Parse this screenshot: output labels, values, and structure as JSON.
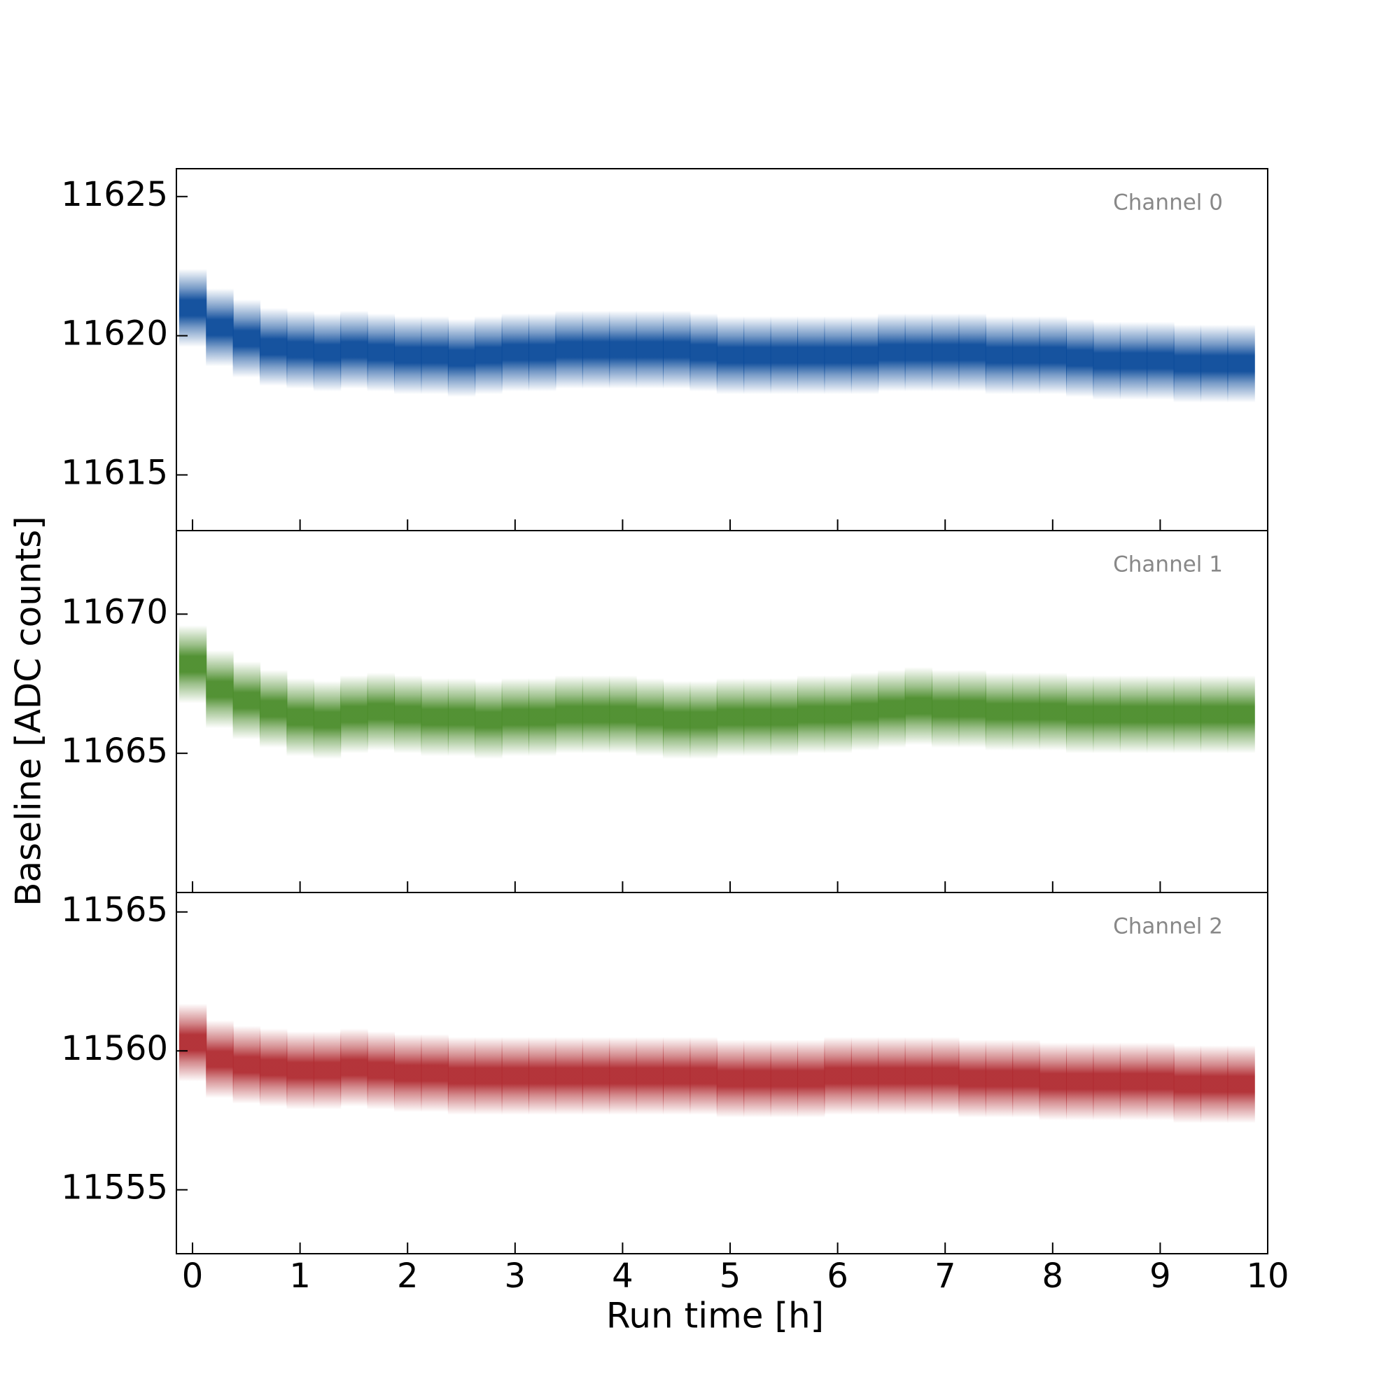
{
  "chart_data": [
    {
      "type": "scatter",
      "annotation": "Channel 0",
      "color": "#0a4a9a",
      "xlim": [
        -0.15,
        10
      ],
      "xticks": [
        0,
        1,
        2,
        3,
        4,
        5,
        6,
        7,
        8,
        9,
        10
      ],
      "ylim": [
        11613,
        11626
      ],
      "yticks": [
        11615,
        11620,
        11625
      ],
      "x": [
        0,
        0.25,
        0.5,
        0.75,
        1,
        1.25,
        1.5,
        1.75,
        2,
        2.25,
        2.5,
        2.75,
        3,
        3.25,
        3.5,
        3.75,
        4,
        4.25,
        4.5,
        4.75,
        5,
        5.25,
        5.5,
        5.75,
        6,
        6.25,
        6.5,
        6.75,
        7,
        7.25,
        7.5,
        7.75,
        8,
        8.25,
        8.5,
        8.75,
        9,
        9.25,
        9.5,
        9.75
      ],
      "values": [
        11621.0,
        11620.3,
        11619.9,
        11619.6,
        11619.5,
        11619.4,
        11619.5,
        11619.4,
        11619.3,
        11619.3,
        11619.2,
        11619.3,
        11619.4,
        11619.4,
        11619.5,
        11619.5,
        11619.5,
        11619.5,
        11619.5,
        11619.4,
        11619.3,
        11619.3,
        11619.3,
        11619.3,
        11619.3,
        11619.3,
        11619.4,
        11619.4,
        11619.4,
        11619.4,
        11619.3,
        11619.3,
        11619.3,
        11619.2,
        11619.1,
        11619.1,
        11619.1,
        11619.0,
        11619.0,
        11619.0
      ],
      "spread": 1.4
    },
    {
      "type": "scatter",
      "annotation": "Channel 1",
      "color": "#4a8c2a",
      "ylabel": "Baseline [ADC counts]",
      "xlim": [
        -0.15,
        10
      ],
      "xticks": [
        0,
        1,
        2,
        3,
        4,
        5,
        6,
        7,
        8,
        9,
        10
      ],
      "ylim": [
        11660,
        11673
      ],
      "yticks": [
        11665,
        11670
      ],
      "x": [
        0,
        0.25,
        0.5,
        0.75,
        1,
        1.25,
        1.5,
        1.75,
        2,
        2.25,
        2.5,
        2.75,
        3,
        3.25,
        3.5,
        3.75,
        4,
        4.25,
        4.5,
        4.75,
        5,
        5.25,
        5.5,
        5.75,
        6,
        6.25,
        6.5,
        6.75,
        7,
        7.25,
        7.5,
        7.75,
        8,
        8.25,
        8.5,
        8.75,
        9,
        9.25,
        9.5,
        9.75
      ],
      "values": [
        11668.2,
        11667.3,
        11666.9,
        11666.6,
        11666.3,
        11666.2,
        11666.4,
        11666.5,
        11666.4,
        11666.3,
        11666.3,
        11666.2,
        11666.3,
        11666.3,
        11666.4,
        11666.4,
        11666.4,
        11666.3,
        11666.2,
        11666.2,
        11666.3,
        11666.3,
        11666.3,
        11666.4,
        11666.4,
        11666.5,
        11666.6,
        11666.7,
        11666.6,
        11666.6,
        11666.5,
        11666.5,
        11666.5,
        11666.4,
        11666.4,
        11666.4,
        11666.4,
        11666.4,
        11666.4,
        11666.4
      ],
      "spread": 1.4
    },
    {
      "type": "scatter",
      "annotation": "Channel 2",
      "color": "#b02a30",
      "xlabel": "Run time [h]",
      "xlim": [
        -0.15,
        10
      ],
      "xticks": [
        0,
        1,
        2,
        3,
        4,
        5,
        6,
        7,
        8,
        9,
        10
      ],
      "ylim": [
        11552.7,
        11565.7
      ],
      "yticks": [
        11555,
        11560,
        11565
      ],
      "x": [
        0,
        0.25,
        0.5,
        0.75,
        1,
        1.25,
        1.5,
        1.75,
        2,
        2.25,
        2.5,
        2.75,
        3,
        3.25,
        3.5,
        3.75,
        4,
        4.25,
        4.5,
        4.75,
        5,
        5.25,
        5.5,
        5.75,
        6,
        6.25,
        6.5,
        6.75,
        7,
        7.25,
        7.5,
        7.75,
        8,
        8.25,
        8.5,
        8.75,
        9,
        9.25,
        9.5,
        9.75
      ],
      "values": [
        11560.3,
        11559.7,
        11559.5,
        11559.4,
        11559.3,
        11559.3,
        11559.4,
        11559.3,
        11559.2,
        11559.2,
        11559.1,
        11559.1,
        11559.1,
        11559.1,
        11559.1,
        11559.1,
        11559.1,
        11559.1,
        11559.1,
        11559.1,
        11559.0,
        11559.0,
        11559.0,
        11559.0,
        11559.1,
        11559.1,
        11559.1,
        11559.1,
        11559.1,
        11559.0,
        11559.0,
        11559.0,
        11558.9,
        11558.9,
        11558.9,
        11558.9,
        11558.9,
        11558.8,
        11558.8,
        11558.8
      ],
      "spread": 1.4
    }
  ]
}
